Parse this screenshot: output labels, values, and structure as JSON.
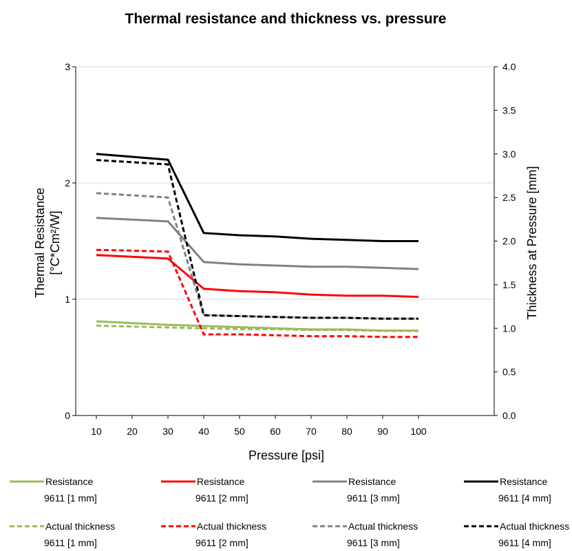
{
  "chart_data": {
    "type": "line",
    "title": "Thermal resistance and thickness vs. pressure",
    "xlabel": "Pressure [psi]",
    "ylabel_line1": "Thermal Resistance",
    "ylabel_line2": "[°C*Cm²/W]",
    "y2label": "Thickness at Pressure [mm]",
    "x": [
      10,
      30,
      40,
      50,
      60,
      70,
      80,
      90,
      100
    ],
    "xticks": [
      "10",
      "20",
      "30",
      "40",
      "50",
      "60",
      "70",
      "80",
      "90",
      "100"
    ],
    "xlim": [
      10,
      100
    ],
    "ylim": [
      0,
      3
    ],
    "yticks": [
      "0",
      "1",
      "2",
      "3"
    ],
    "y2lim": [
      0,
      4.0
    ],
    "y2ticks": [
      "0.0",
      "0.5",
      "1.0",
      "1.5",
      "2.0",
      "2.5",
      "3.0",
      "3.5",
      "4.0"
    ],
    "grid": "horizontal",
    "legend_position": "bottom",
    "series": [
      {
        "name": "Resistance",
        "name2": "9611 [1 mm]",
        "axis": "left",
        "style": "solid",
        "color": "#9bbb59",
        "values": [
          0.81,
          0.78,
          0.77,
          0.76,
          0.75,
          0.74,
          0.74,
          0.73,
          0.73
        ]
      },
      {
        "name": "Resistance",
        "name2": "9611 [2 mm]",
        "axis": "left",
        "style": "solid",
        "color": "#ff0000",
        "values": [
          1.38,
          1.35,
          1.09,
          1.07,
          1.06,
          1.04,
          1.03,
          1.03,
          1.02
        ]
      },
      {
        "name": "Resistance",
        "name2": "9611 [3 mm]",
        "axis": "left",
        "style": "solid",
        "color": "#808080",
        "values": [
          1.7,
          1.67,
          1.32,
          1.3,
          1.29,
          1.28,
          1.28,
          1.27,
          1.26
        ]
      },
      {
        "name": "Resistance",
        "name2": "9611 [4 mm]",
        "axis": "left",
        "style": "solid",
        "color": "#000000",
        "values": [
          2.25,
          2.2,
          1.57,
          1.55,
          1.54,
          1.52,
          1.51,
          1.5,
          1.5
        ]
      },
      {
        "name": "Actual thickness",
        "name2": "9611 [1 mm]",
        "axis": "right",
        "style": "dashed",
        "color": "#9bbb59",
        "values": [
          1.03,
          1.01,
          1.0,
          0.99,
          0.99,
          0.98,
          0.98,
          0.97,
          0.97
        ]
      },
      {
        "name": "Actual thickness",
        "name2": "9611 [2 mm]",
        "axis": "right",
        "style": "dashed",
        "color": "#ff0000",
        "values": [
          1.9,
          1.88,
          0.93,
          0.93,
          0.92,
          0.91,
          0.91,
          0.9,
          0.9
        ]
      },
      {
        "name": "Actual thickness",
        "name2": "9611 [3 mm]",
        "axis": "right",
        "style": "dashed",
        "color": "#808080",
        "values": [
          2.55,
          2.5,
          1.15,
          1.14,
          1.13,
          1.12,
          1.12,
          1.11,
          1.11
        ]
      },
      {
        "name": "Actual thickness",
        "name2": "9611 [4 mm]",
        "axis": "right",
        "style": "dashed",
        "color": "#000000",
        "values": [
          2.93,
          2.88,
          1.15,
          1.14,
          1.13,
          1.12,
          1.12,
          1.11,
          1.11
        ]
      }
    ]
  }
}
